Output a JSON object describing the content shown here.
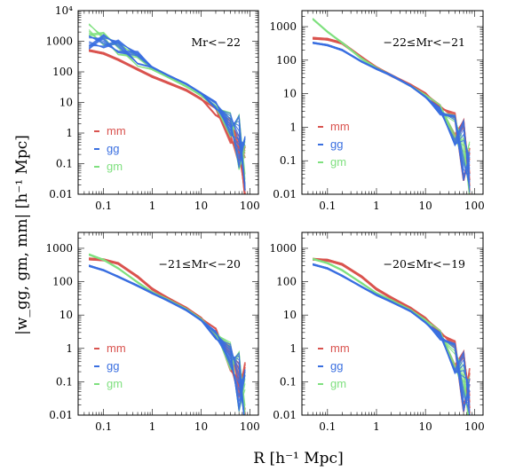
{
  "figure": {
    "xlabel": "R [h⁻¹ Mpc]",
    "ylabel": "|w_gg, gm, mm| [h⁻¹ Mpc]"
  },
  "chart_data": [
    {
      "type": "line",
      "panel_label": "Mr<−22",
      "xscale": "log",
      "yscale": "log",
      "xlim": [
        0.03,
        150
      ],
      "ylim": [
        0.01,
        10000
      ],
      "xticks": [
        "0.1",
        "1",
        "10",
        "100"
      ],
      "yticks": [
        "0.01",
        "0.1",
        "1",
        "10",
        "100",
        "1000",
        "10⁴"
      ],
      "legend_position": "left",
      "series": [
        {
          "name": "mm",
          "color": "#d9534f",
          "x": [
            0.05,
            0.1,
            0.2,
            0.5,
            1,
            2,
            5,
            10,
            20,
            40,
            60,
            80
          ],
          "values": [
            500,
            400,
            250,
            120,
            70,
            45,
            25,
            13,
            5,
            1.2,
            0.3,
            0.05
          ]
        },
        {
          "name": "gg",
          "color": "#3a6fe0",
          "x": [
            0.05,
            0.1,
            0.2,
            0.5,
            1,
            2,
            5,
            10,
            20,
            40,
            60,
            80
          ],
          "values": [
            900,
            1000,
            700,
            300,
            140,
            80,
            40,
            20,
            8,
            2,
            0.5,
            0.1
          ]
        },
        {
          "name": "gm",
          "color": "#7fe07f",
          "x": [
            0.05,
            0.1,
            0.2,
            0.5,
            1,
            2,
            5,
            10,
            20,
            40,
            60,
            80
          ],
          "values": [
            2300,
            1200,
            600,
            250,
            120,
            70,
            33,
            17,
            7,
            1.8,
            0.5,
            0.1
          ]
        }
      ]
    },
    {
      "type": "line",
      "panel_label": "−22≤Mr<−21",
      "xscale": "log",
      "yscale": "log",
      "xlim": [
        0.03,
        150
      ],
      "ylim": [
        0.01,
        3000
      ],
      "xticks": [
        "0.1",
        "1",
        "10",
        "100"
      ],
      "yticks": [
        "0.01",
        "0.1",
        "1",
        "10",
        "100",
        "1000"
      ],
      "legend_position": "left",
      "series": [
        {
          "name": "mm",
          "color": "#d9534f",
          "x": [
            0.05,
            0.1,
            0.2,
            0.5,
            1,
            2,
            5,
            10,
            20,
            40,
            60,
            80
          ],
          "values": [
            450,
            420,
            320,
            120,
            60,
            35,
            18,
            10,
            4,
            1,
            0.2,
            0.05
          ]
        },
        {
          "name": "gg",
          "color": "#3a6fe0",
          "x": [
            0.05,
            0.1,
            0.2,
            0.5,
            1,
            2,
            5,
            10,
            20,
            40,
            60,
            80
          ],
          "values": [
            330,
            280,
            200,
            90,
            55,
            35,
            17,
            8,
            3,
            0.8,
            0.2,
            0.05
          ]
        },
        {
          "name": "gm",
          "color": "#7fe07f",
          "x": [
            0.05,
            0.1,
            0.2,
            0.5,
            1,
            2,
            5,
            10,
            20,
            40,
            60,
            80
          ],
          "values": [
            1700,
            700,
            330,
            110,
            58,
            35,
            17,
            9,
            3.5,
            0.9,
            0.2,
            0.05
          ]
        }
      ]
    },
    {
      "type": "line",
      "panel_label": "−21≤Mr<−20",
      "xscale": "log",
      "yscale": "log",
      "xlim": [
        0.03,
        150
      ],
      "ylim": [
        0.01,
        3000
      ],
      "xticks": [
        "0.1",
        "1",
        "10",
        "100"
      ],
      "yticks": [
        "0.01",
        "0.1",
        "1",
        "10",
        "100",
        "1000"
      ],
      "legend_position": "left",
      "series": [
        {
          "name": "mm",
          "color": "#d9534f",
          "x": [
            0.05,
            0.1,
            0.2,
            0.5,
            1,
            2,
            5,
            10,
            20,
            40,
            60,
            80
          ],
          "values": [
            480,
            450,
            350,
            140,
            60,
            33,
            16,
            8,
            3,
            0.5,
            0.1,
            0.05
          ]
        },
        {
          "name": "gg",
          "color": "#3a6fe0",
          "x": [
            0.05,
            0.1,
            0.2,
            0.5,
            1,
            2,
            5,
            10,
            20,
            40,
            60,
            80
          ],
          "values": [
            300,
            220,
            140,
            75,
            45,
            28,
            14,
            7,
            2.5,
            0.6,
            0.1,
            0.03
          ]
        },
        {
          "name": "gm",
          "color": "#7fe07f",
          "x": [
            0.05,
            0.1,
            0.2,
            0.5,
            1,
            2,
            5,
            10,
            20,
            40,
            60,
            80
          ],
          "values": [
            650,
            450,
            250,
            95,
            48,
            30,
            15,
            7.5,
            2.8,
            0.6,
            0.1,
            0.03
          ]
        }
      ]
    },
    {
      "type": "line",
      "panel_label": "−20≤Mr<−19",
      "xscale": "log",
      "yscale": "log",
      "xlim": [
        0.03,
        150
      ],
      "ylim": [
        0.01,
        3000
      ],
      "xticks": [
        "0.1",
        "1",
        "10",
        "100"
      ],
      "yticks": [
        "0.01",
        "0.1",
        "1",
        "10",
        "100",
        "1000"
      ],
      "legend_position": "left",
      "series": [
        {
          "name": "mm",
          "color": "#d9534f",
          "x": [
            0.05,
            0.1,
            0.2,
            0.5,
            1,
            2,
            5,
            10,
            20,
            40,
            60,
            80
          ],
          "values": [
            470,
            440,
            330,
            140,
            60,
            33,
            16,
            8,
            3,
            0.6,
            0.1,
            0.05
          ]
        },
        {
          "name": "gg",
          "color": "#3a6fe0",
          "x": [
            0.05,
            0.1,
            0.2,
            0.5,
            1,
            2,
            5,
            10,
            20,
            40,
            60,
            80
          ],
          "values": [
            330,
            250,
            150,
            70,
            40,
            25,
            13,
            6,
            2.3,
            0.5,
            0.1,
            0.03
          ]
        },
        {
          "name": "gm",
          "color": "#7fe07f",
          "x": [
            0.05,
            0.1,
            0.2,
            0.5,
            1,
            2,
            5,
            10,
            20,
            40,
            60,
            80
          ],
          "values": [
            480,
            360,
            220,
            90,
            45,
            28,
            14,
            7,
            2.6,
            0.5,
            0.1,
            0.02
          ]
        }
      ]
    }
  ]
}
